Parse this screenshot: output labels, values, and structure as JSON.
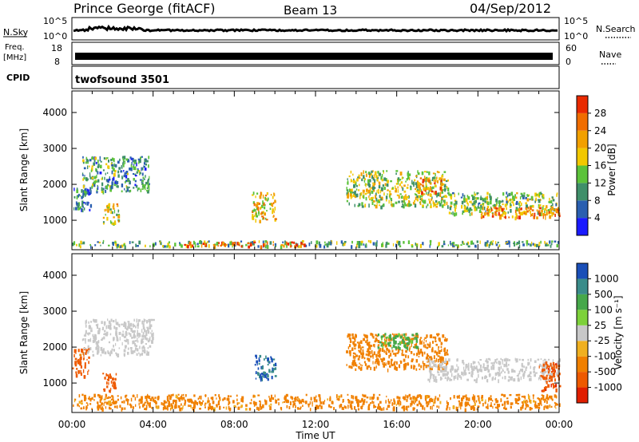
{
  "header": {
    "station": "Prince George (fitACF)",
    "beam": "Beam 13",
    "date": "04/Sep/2012"
  },
  "top_panels": {
    "nsky_label": "N.Sky",
    "nsky_ticks": [
      "10^5",
      "10^0"
    ],
    "nsearch_label": "N.Search",
    "nsearch_ticks": [
      "10^5",
      "10^0"
    ],
    "freq_label_1": "Freq.",
    "freq_label_2": "[MHz]",
    "freq_ticks": [
      "18",
      "8"
    ],
    "nave_label": "Nave",
    "nave_ticks": [
      "60",
      "0"
    ],
    "cpid_label": "CPID",
    "cpid_value": "twofsound 3501"
  },
  "axes": {
    "ylabel": "Slant Range [km]",
    "xlabel": "Time UT",
    "yticks": [
      "1000",
      "2000",
      "3000",
      "4000"
    ],
    "xticks": [
      "00:00",
      "04:00",
      "08:00",
      "12:00",
      "16:00",
      "20:00",
      "00:00"
    ]
  },
  "power_colorbar": {
    "label": "Power [dB]",
    "ticks": [
      "4",
      "8",
      "12",
      "16",
      "20",
      "24",
      "28"
    ],
    "colors": [
      "#1a1aff",
      "#2a5fb0",
      "#3f8f6a",
      "#5cc23a",
      "#f2c800",
      "#f2a000",
      "#f06d00",
      "#e92a00"
    ]
  },
  "velocity_colorbar": {
    "label": "Velocity [m s⁻¹]",
    "ticks": [
      "1000",
      "500",
      "100",
      "25",
      "-25",
      "-100",
      "-500",
      "-1000"
    ],
    "colors": [
      "#1a4fb8",
      "#3a8c8a",
      "#46a84a",
      "#7dd13a",
      "#c8c8c8",
      "#f0b020",
      "#f08000",
      "#ee5a00",
      "#e01e00"
    ]
  },
  "chart_data": [
    {
      "type": "heatmap",
      "title": "Power",
      "xlabel": "Time UT",
      "ylabel": "Slant Range [km]",
      "xlim": [
        "00:00",
        "24:00"
      ],
      "ylim": [
        180,
        4600
      ],
      "colorbar": {
        "label": "Power [dB]",
        "range": [
          0,
          32
        ]
      },
      "regions": [
        {
          "t": [
            0.0,
            0.9
          ],
          "r": [
            1300,
            2000
          ],
          "value": 8
        },
        {
          "t": [
            0.5,
            3.8
          ],
          "r": [
            1800,
            2800
          ],
          "value": 10
        },
        {
          "t": [
            1.5,
            2.3
          ],
          "r": [
            900,
            1500
          ],
          "value": 18
        },
        {
          "t": [
            0.0,
            24.0
          ],
          "r": [
            300,
            450
          ],
          "value": 12
        },
        {
          "t": [
            5.5,
            11.5
          ],
          "r": [
            300,
            420
          ],
          "value": 26
        },
        {
          "t": [
            8.8,
            10.0
          ],
          "r": [
            1000,
            1800
          ],
          "value": 20
        },
        {
          "t": [
            13.5,
            18.5
          ],
          "r": [
            1400,
            2400
          ],
          "value": 16
        },
        {
          "t": [
            17.0,
            18.2
          ],
          "r": [
            1800,
            2200
          ],
          "value": 24
        },
        {
          "t": [
            18.5,
            24.0
          ],
          "r": [
            1200,
            1800
          ],
          "value": 14
        },
        {
          "t": [
            20.0,
            24.0
          ],
          "r": [
            1100,
            1400
          ],
          "value": 24
        }
      ]
    },
    {
      "type": "heatmap",
      "title": "Velocity",
      "xlabel": "Time UT",
      "ylabel": "Slant Range [km]",
      "xlim": [
        "00:00",
        "24:00"
      ],
      "ylim": [
        180,
        4600
      ],
      "colorbar": {
        "label": "Velocity [m s⁻¹]",
        "ticks": [
          1000,
          500,
          100,
          25,
          -25,
          -100,
          -500,
          -1000
        ]
      },
      "regions": [
        {
          "t": [
            0.0,
            0.8
          ],
          "r": [
            1200,
            2000
          ],
          "value": -500
        },
        {
          "t": [
            0.5,
            4.0
          ],
          "r": [
            1800,
            2800
          ],
          "value": 0
        },
        {
          "t": [
            1.5,
            2.2
          ],
          "r": [
            800,
            1300
          ],
          "value": -500
        },
        {
          "t": [
            0.0,
            24.0
          ],
          "r": [
            300,
            700
          ],
          "value": -100
        },
        {
          "t": [
            9.0,
            10.0
          ],
          "r": [
            1100,
            1800
          ],
          "value": 800
        },
        {
          "t": [
            13.5,
            18.5
          ],
          "r": [
            1400,
            2400
          ],
          "value": -200
        },
        {
          "t": [
            15.0,
            17.0
          ],
          "r": [
            2000,
            2400
          ],
          "value": 80
        },
        {
          "t": [
            17.5,
            24.0
          ],
          "r": [
            1100,
            1700
          ],
          "value": 0
        },
        {
          "t": [
            23.0,
            24.0
          ],
          "r": [
            800,
            1600
          ],
          "value": -600
        }
      ]
    }
  ]
}
